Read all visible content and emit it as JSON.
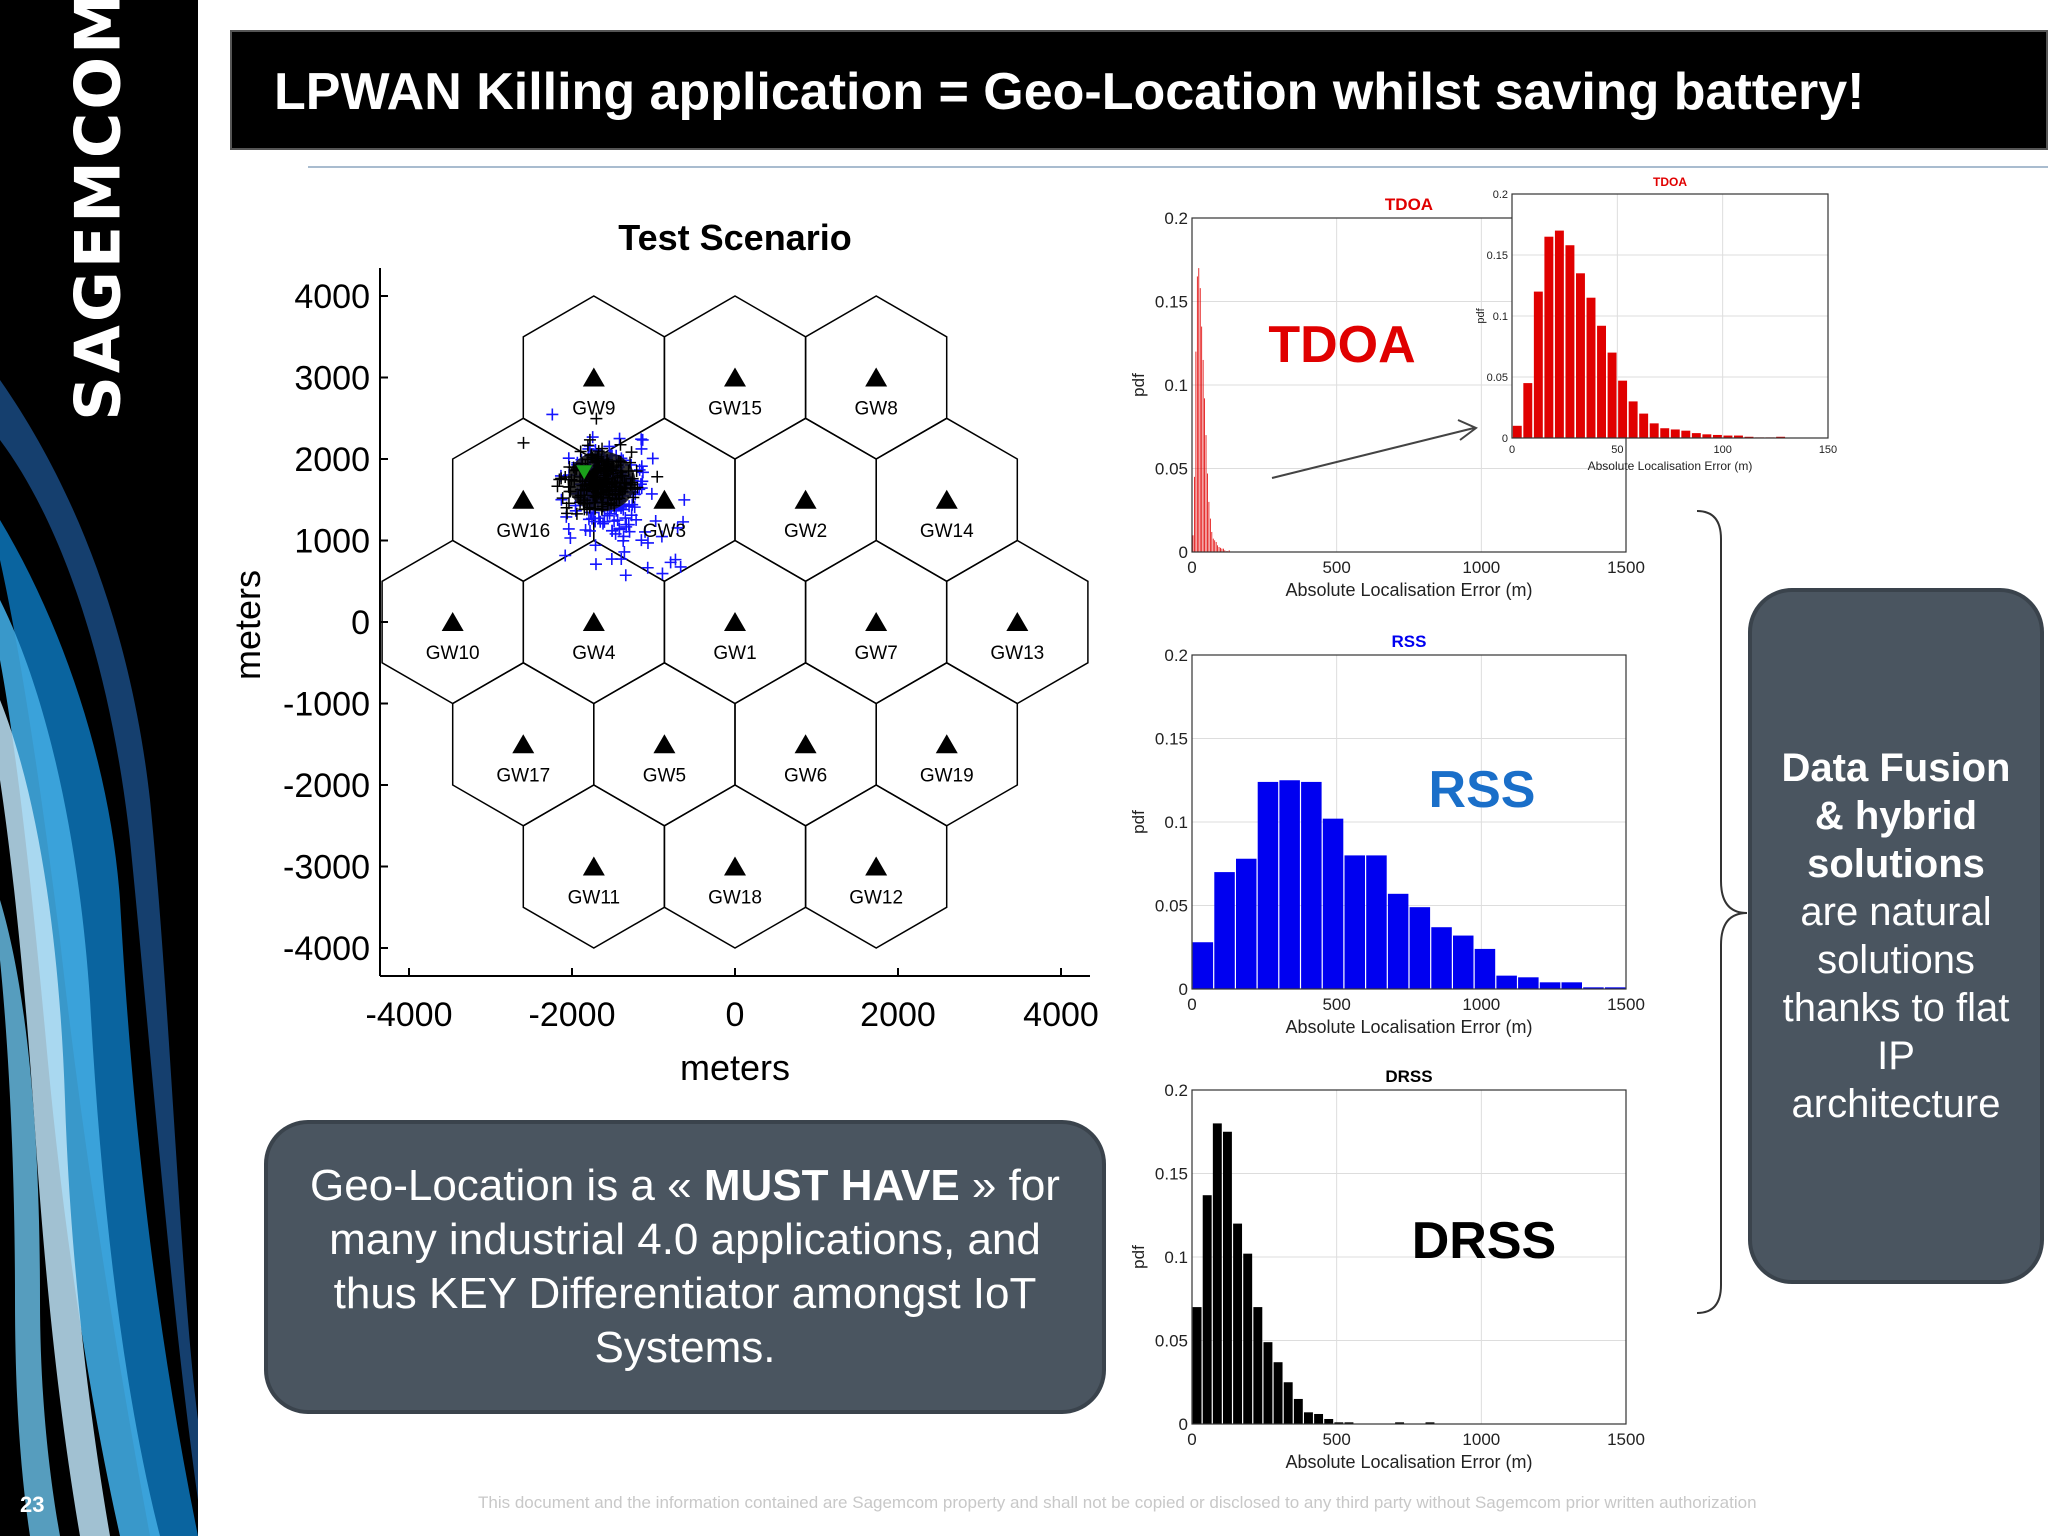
{
  "sidebar": {
    "brand": "SAGEMCOM",
    "slide_number": "23"
  },
  "title": "LPWAN Killing application = Geo-Location whilst saving battery!",
  "scenario": {
    "title": "Test Scenario",
    "xlabel": "meters",
    "ylabel": "meters",
    "xticks": [
      "-4000",
      "-2000",
      "0",
      "2000",
      "4000"
    ],
    "yticks": [
      "4000",
      "3000",
      "2000",
      "1000",
      "0",
      "-1000",
      "-2000",
      "-3000",
      "-4000"
    ],
    "gateways": [
      {
        "label": "GW1",
        "q": 0,
        "r": 0
      },
      {
        "label": "GW2",
        "q": 1,
        "r": -1
      },
      {
        "label": "GW3",
        "q": 0,
        "r": -1
      },
      {
        "label": "GW4",
        "q": -1,
        "r": 0
      },
      {
        "label": "GW5",
        "q": -1,
        "r": 1
      },
      {
        "label": "GW6",
        "q": 0,
        "r": 1
      },
      {
        "label": "GW7",
        "q": 1,
        "r": 0
      },
      {
        "label": "GW8",
        "q": 2,
        "r": -2
      },
      {
        "label": "GW9",
        "q": 0,
        "r": -2
      },
      {
        "label": "GW10",
        "q": -2,
        "r": 0
      },
      {
        "label": "GW11",
        "q": -2,
        "r": 2
      },
      {
        "label": "GW12",
        "q": 0,
        "r": 2
      },
      {
        "label": "GW13",
        "q": 2,
        "r": 0
      },
      {
        "label": "GW14",
        "q": 2,
        "r": -1
      },
      {
        "label": "GW15",
        "q": 1,
        "r": -2
      },
      {
        "label": "GW16",
        "q": -1,
        "r": -1
      },
      {
        "label": "GW17",
        "q": -2,
        "r": 1
      },
      {
        "label": "GW18",
        "q": -1,
        "r": 2
      },
      {
        "label": "GW19",
        "q": 1,
        "r": 1
      }
    ]
  },
  "chart_data": [
    {
      "type": "bar",
      "title": "TDOA",
      "overlay_label": "TDOA",
      "color": "#e00000",
      "xlabel": "Absolute Localisation Error (m)",
      "ylabel": "pdf",
      "xlim": [
        0,
        1500
      ],
      "ylim": [
        0,
        0.2
      ],
      "xticks": [
        "0",
        "500",
        "1000",
        "1500"
      ],
      "yticks": [
        "0",
        "0.05",
        "0.1",
        "0.15",
        "0.2"
      ],
      "bin_width": 5,
      "values": [
        0.01,
        0.045,
        0.12,
        0.165,
        0.17,
        0.158,
        0.135,
        0.115,
        0.092,
        0.07,
        0.047,
        0.03,
        0.02,
        0.012,
        0.008,
        0.007,
        0.006,
        0.004,
        0.003,
        0.0025,
        0.002,
        0.002,
        0.001,
        0.0005,
        0.0005,
        0.001
      ]
    },
    {
      "type": "bar",
      "title": "TDOA",
      "inset": true,
      "color": "#e00000",
      "xlabel": "Absolute Localisation Error (m)",
      "ylabel": "pdf",
      "xlim": [
        0,
        150
      ],
      "ylim": [
        0,
        0.2
      ],
      "xticks": [
        "0",
        "50",
        "100",
        "150"
      ],
      "yticks": [
        "0",
        "0.05",
        "0.1",
        "0.15",
        "0.2"
      ],
      "bin_width": 5,
      "values": [
        0.01,
        0.045,
        0.12,
        0.165,
        0.17,
        0.158,
        0.135,
        0.115,
        0.092,
        0.07,
        0.047,
        0.03,
        0.02,
        0.012,
        0.008,
        0.007,
        0.006,
        0.004,
        0.003,
        0.0025,
        0.002,
        0.002,
        0.001,
        0.0005,
        0.0005,
        0.001
      ]
    },
    {
      "type": "bar",
      "title": "RSS",
      "overlay_label": "RSS",
      "color": "#0000f0",
      "xlabel": "Absolute Localisation Error (m)",
      "ylabel": "pdf",
      "xlim": [
        0,
        1500
      ],
      "ylim": [
        0,
        0.2
      ],
      "xticks": [
        "0",
        "500",
        "1000",
        "1500"
      ],
      "yticks": [
        "0",
        "0.05",
        "0.1",
        "0.15",
        "0.2"
      ],
      "bin_width": 75,
      "values": [
        0.028,
        0.07,
        0.078,
        0.124,
        0.125,
        0.124,
        0.102,
        0.08,
        0.08,
        0.057,
        0.049,
        0.037,
        0.032,
        0.024,
        0.008,
        0.007,
        0.004,
        0.004,
        0.001,
        0.001
      ]
    },
    {
      "type": "bar",
      "title": "DRSS",
      "overlay_label": "DRSS",
      "color": "#000000",
      "xlabel": "Absolute Localisation Error (m)",
      "ylabel": "pdf",
      "xlim": [
        0,
        1500
      ],
      "ylim": [
        0,
        0.2
      ],
      "xticks": [
        "0",
        "500",
        "1000",
        "1500"
      ],
      "yticks": [
        "0",
        "0.05",
        "0.1",
        "0.15",
        "0.2"
      ],
      "bin_width": 35,
      "values": [
        0.07,
        0.137,
        0.18,
        0.175,
        0.12,
        0.102,
        0.07,
        0.049,
        0.037,
        0.025,
        0.015,
        0.007,
        0.006,
        0.003,
        0.001,
        0.001,
        0,
        0,
        0,
        0,
        0.001,
        0,
        0,
        0.001
      ]
    }
  ],
  "callout_left": {
    "pre": "Geo-Location is a « ",
    "strong": "MUST HAVE",
    "post": " » for many industrial 4.0 applications, and thus KEY Differentiator amongst IoT Systems."
  },
  "callout_right": {
    "strong": "Data Fusion & hybrid solutions",
    "post": "are natural solutions thanks to flat IP architecture"
  },
  "footer": "This document and the information contained are Sagemcom property and shall not be copied or disclosed to any third party without Sagemcom prior written authorization",
  "colors": {
    "tdoa": "#e00000",
    "rss": "#0000f0",
    "drss": "#000000",
    "callout": "#4a5560"
  }
}
